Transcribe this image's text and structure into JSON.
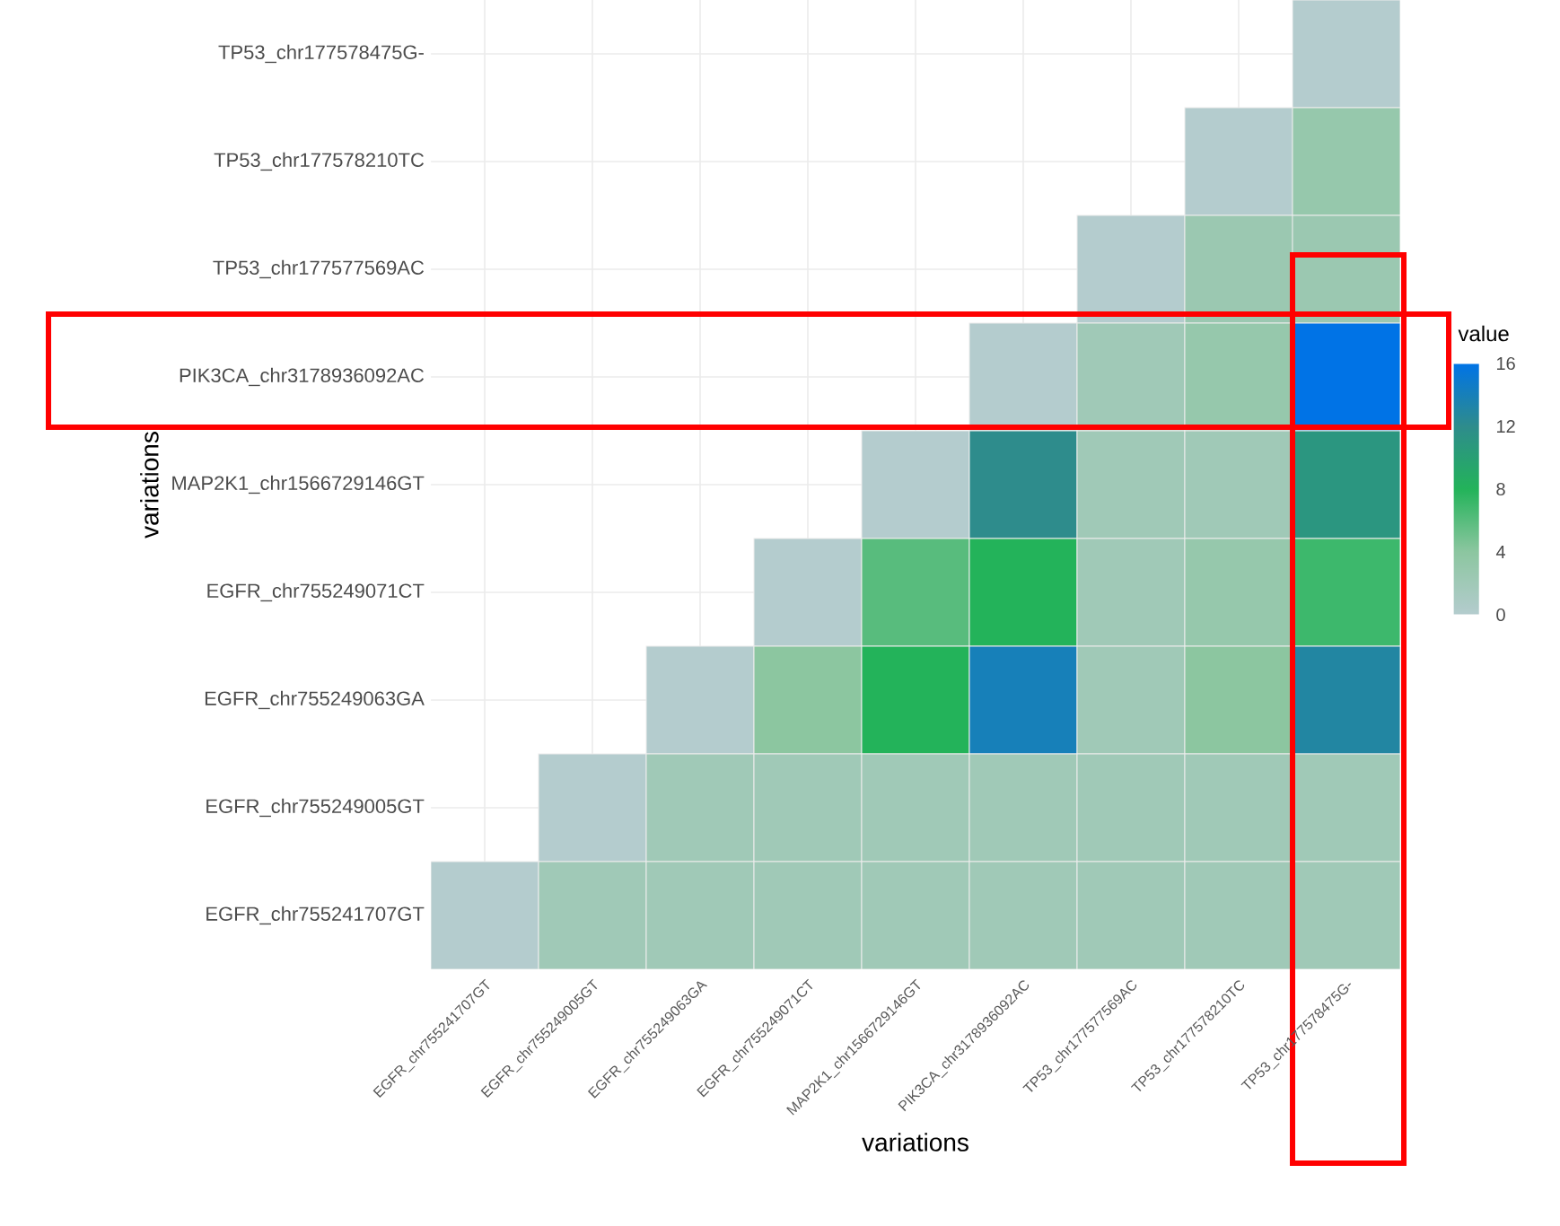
{
  "chart_data": {
    "type": "heatmap",
    "xlabel": "variations",
    "ylabel": "variations",
    "clabel": "value",
    "categories": [
      "EGFR_chr755241707GT",
      "EGFR_chr755249005GT",
      "EGFR_chr755249063GA",
      "EGFR_chr755249071CT",
      "MAP2K1_chr1566729146GT",
      "PIK3CA_chr3178936092AC",
      "TP53_chr177577569AC",
      "TP53_chr177578210TC",
      "TP53_chr177578475G-"
    ],
    "y_categories": [
      "TP53_chr177578475G-",
      "TP53_chr177578210TC",
      "TP53_chr177577569AC",
      "PIK3CA_chr3178936092AC",
      "MAP2K1_chr1566729146GT",
      "EGFR_chr755249071CT",
      "EGFR_chr755249063GA",
      "EGFR_chr755249005GT",
      "EGFR_chr755241707GT"
    ],
    "cells": [
      [
        null,
        null,
        null,
        null,
        null,
        null,
        null,
        null,
        0
      ],
      [
        null,
        null,
        null,
        null,
        null,
        null,
        null,
        0,
        3
      ],
      [
        null,
        null,
        null,
        null,
        null,
        null,
        0,
        2.5,
        2.5
      ],
      [
        null,
        null,
        null,
        null,
        null,
        0,
        2,
        3,
        16
      ],
      [
        null,
        null,
        null,
        null,
        0,
        12,
        2,
        2,
        11
      ],
      [
        null,
        null,
        null,
        0,
        6,
        8,
        2,
        3,
        7
      ],
      [
        null,
        null,
        0,
        4,
        8,
        14,
        2,
        4,
        13
      ],
      [
        null,
        0,
        2,
        2,
        2,
        2,
        2,
        2,
        2
      ],
      [
        0,
        2,
        2,
        2,
        2,
        2,
        2,
        2,
        2
      ]
    ],
    "clim": [
      0,
      16
    ],
    "cticks": [
      0,
      4,
      8,
      12,
      16
    ],
    "grid": true
  }
}
